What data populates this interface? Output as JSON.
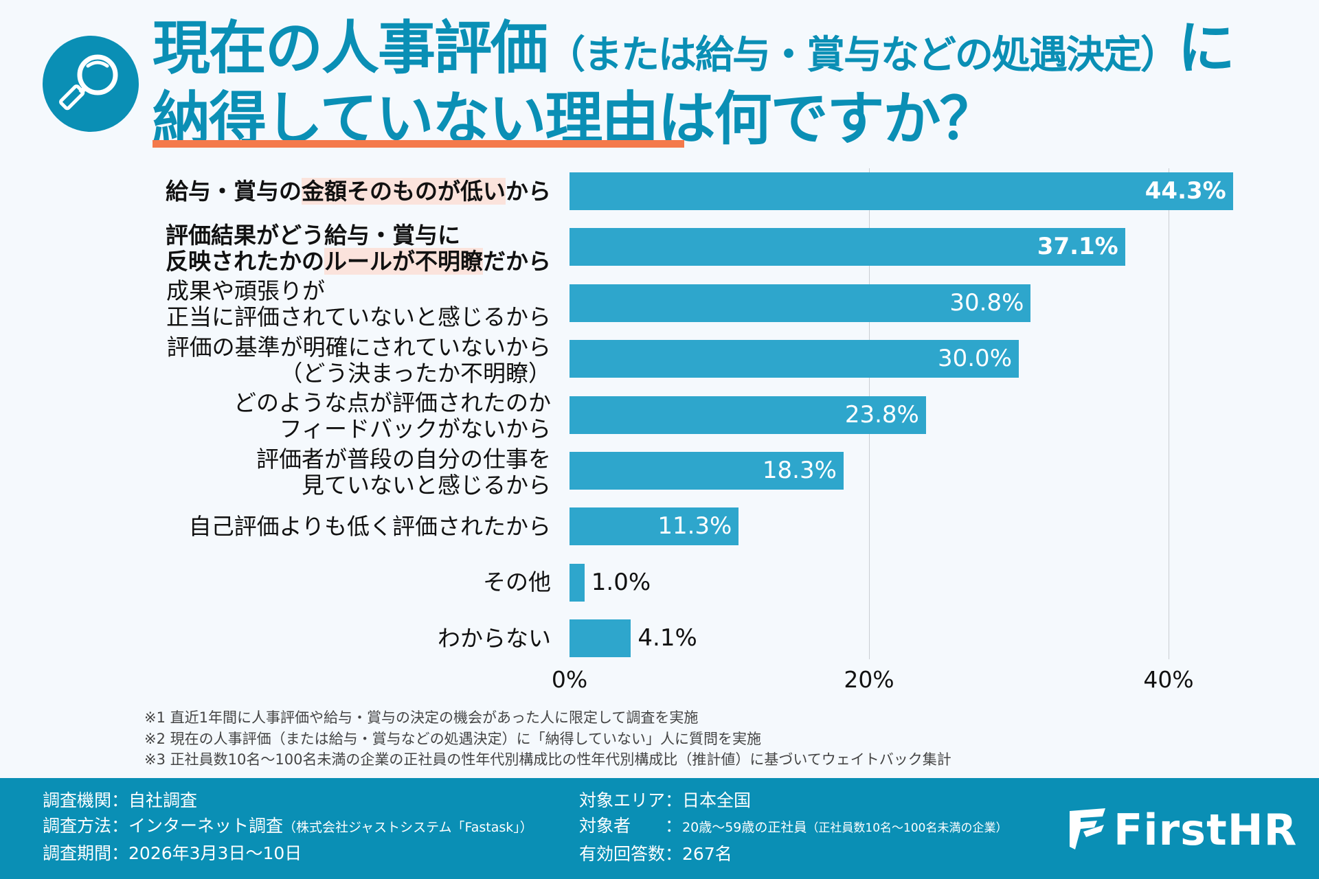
{
  "title": {
    "line1_main": "現在の人事評価",
    "line1_paren": "（または給与・賞与などの処遇決定）",
    "line1_end": "に",
    "line2_underlined": "納得していない理由",
    "line2_rest": "は何ですか？"
  },
  "colors": {
    "brand": "#0a8fb5",
    "bar": "#2ea6cc",
    "underline": "#f47a4b",
    "highlight": "#fbe3dc"
  },
  "chart_data": {
    "type": "bar",
    "orientation": "horizontal",
    "title": "現在の人事評価（または給与・賞与などの処遇決定）に納得していない理由は何ですか？",
    "categories": [
      "給与・賞与の金額そのものが低いから",
      "評価結果がどう給与・賞与に反映されたかのルールが不明瞭だから",
      "成果や頑張りが正当に評価されていないと感じるから",
      "評価の基準が明確にされていないから（どう決まったか不明瞭）",
      "どのような点が評価されたのかフィードバックがないから",
      "評価者が普段の自分の仕事を見ていないと感じるから",
      "自己評価よりも低く評価されたから",
      "その他",
      "わからない"
    ],
    "label_lines": [
      [
        {
          "t": "給与・賞与の"
        },
        {
          "t": "金額そのものが低い",
          "hl": true
        },
        {
          "t": "から"
        }
      ],
      [
        {
          "t": "評価結果がどう給与・賞与に"
        }
      ],
      [
        {
          "t": "反映されたかの"
        },
        {
          "t": "ルールが不明瞭",
          "hl": true
        },
        {
          "t": "だから"
        }
      ],
      [
        {
          "t": "成果や頑張りが"
        }
      ],
      [
        {
          "t": "正当に評価されていないと感じるから"
        }
      ],
      [
        {
          "t": "評価の基準が明確にされていないから"
        }
      ],
      [
        {
          "t": "（どう決まったか不明瞭）"
        }
      ],
      [
        {
          "t": "どのような点が評価されたのか"
        }
      ],
      [
        {
          "t": "フィードバックがないから"
        }
      ],
      [
        {
          "t": "評価者が普段の自分の仕事を"
        }
      ],
      [
        {
          "t": "見ていないと感じるから"
        }
      ],
      [
        {
          "t": "自己評価よりも低く評価されたから"
        }
      ],
      [
        {
          "t": "その他"
        }
      ],
      [
        {
          "t": "わからない"
        }
      ]
    ],
    "values": [
      44.3,
      37.1,
      30.8,
      30.0,
      23.8,
      18.3,
      11.3,
      1.0,
      4.1
    ],
    "value_labels": [
      "44.3%",
      "37.1%",
      "30.8%",
      "30.0%",
      "23.8%",
      "18.3%",
      "11.3%",
      "1.0%",
      "4.1%"
    ],
    "bold_categories": [
      0,
      1
    ],
    "xlim": [
      0,
      45
    ],
    "xticks": [
      0,
      20,
      40
    ],
    "xtick_labels": [
      "0%",
      "20%",
      "40%"
    ],
    "grid": "vertical",
    "xlabel": "",
    "ylabel": ""
  },
  "notes": [
    "※1 直近1年間に人事評価や給与・賞与の決定の機会があった人に限定して調査を実施",
    "※2 現在の人事評価（または給与・賞与などの処遇決定）に「納得していない」人に質問を実施",
    "※3 正社員数10名～100名未満の企業の正社員の性年代別構成比の性年代別構成比（推計値）に基づいてウェイトバック集計"
  ],
  "footer": {
    "left": [
      {
        "key": "調査機関：",
        "value": "自社調査",
        "small": ""
      },
      {
        "key": "調査方法：",
        "value": "インターネット調査",
        "small": "（株式会社ジャストシステム「Fastask」）"
      },
      {
        "key": "調査期間：",
        "value": "2026年3月3日～10日",
        "small": ""
      }
    ],
    "right": [
      {
        "key": "対象エリア：",
        "value": "日本全国",
        "small": ""
      },
      {
        "key": "対象者　　：",
        "value": "20歳～59歳の正社員",
        "small": "（正社員数10名～100名未満の企業）"
      },
      {
        "key": "有効回答数：",
        "value": "267名",
        "small": ""
      }
    ],
    "logo_text": "FirstHR"
  }
}
